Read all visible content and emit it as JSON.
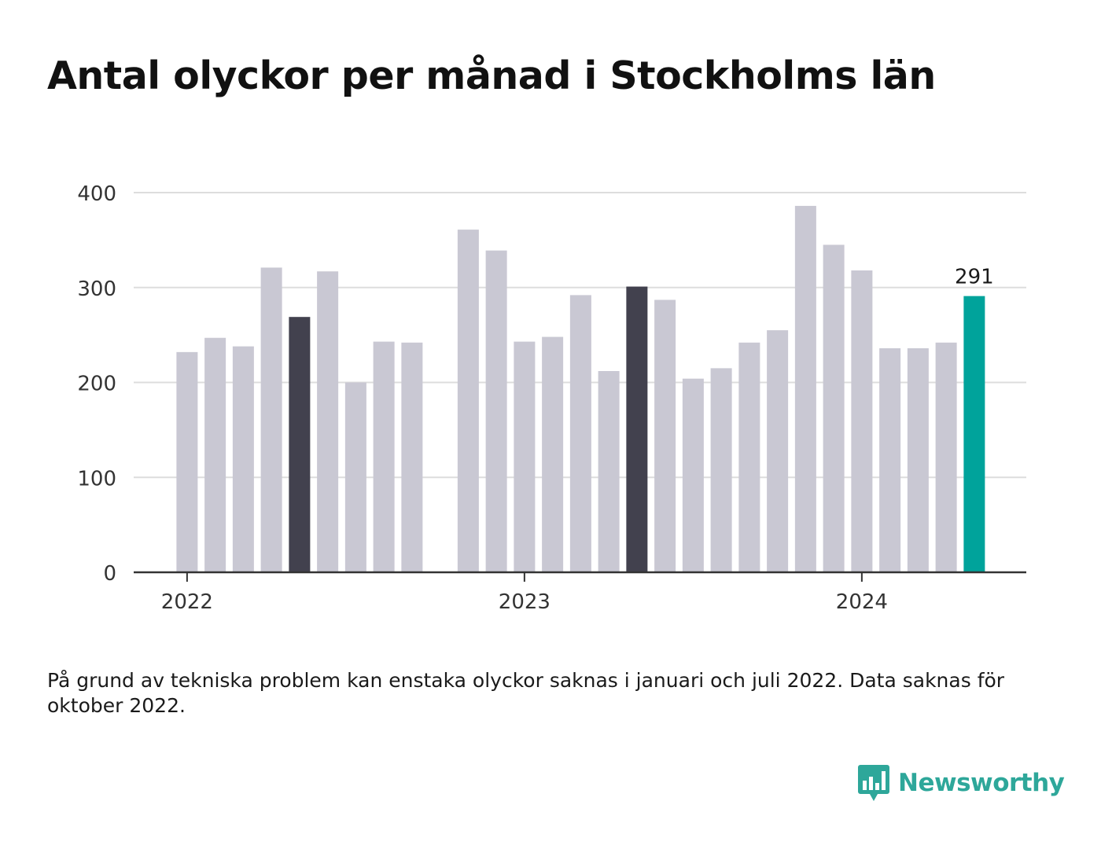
{
  "title": "Antal olyckor per månad i Stockholms län",
  "note": "På grund av tekniska problem kan enstaka olyckor saknas i januari och juli 2022. Data saknas för oktober 2022.",
  "brand": {
    "name": "Newsworthy",
    "icon": "bar-chart-speech-bubble-icon",
    "color": "#2ea79a"
  },
  "colors": {
    "bar": "#c9c8d3",
    "highlight": "#42414e",
    "latest": "#00a39b",
    "grid": "#dddddd",
    "axis": "#333333"
  },
  "chart_data": {
    "type": "bar",
    "title": "Antal olyckor per månad i Stockholms län",
    "ylim": [
      0,
      400
    ],
    "yticks": [
      0,
      100,
      200,
      300,
      400
    ],
    "xticks": [
      {
        "label": "2022",
        "month": "2022-01"
      },
      {
        "label": "2023",
        "month": "2023-01"
      },
      {
        "label": "2024",
        "month": "2024-01"
      }
    ],
    "grid": true,
    "months": [
      "2022-01",
      "2022-02",
      "2022-03",
      "2022-04",
      "2022-05",
      "2022-06",
      "2022-07",
      "2022-08",
      "2022-09",
      "2022-10",
      "2022-11",
      "2022-12",
      "2023-01",
      "2023-02",
      "2023-03",
      "2023-04",
      "2023-05",
      "2023-06",
      "2023-07",
      "2023-08",
      "2023-09",
      "2023-10",
      "2023-11",
      "2023-12",
      "2024-01",
      "2024-02",
      "2024-03",
      "2024-04",
      "2024-05"
    ],
    "values": [
      232,
      247,
      238,
      321,
      269,
      317,
      200,
      243,
      242,
      null,
      361,
      339,
      243,
      248,
      292,
      212,
      301,
      287,
      204,
      215,
      242,
      255,
      386,
      345,
      318,
      236,
      236,
      242,
      291
    ],
    "highlight_months": [
      "2022-05",
      "2023-05"
    ],
    "latest": {
      "month": "2024-05",
      "label": "291"
    }
  }
}
